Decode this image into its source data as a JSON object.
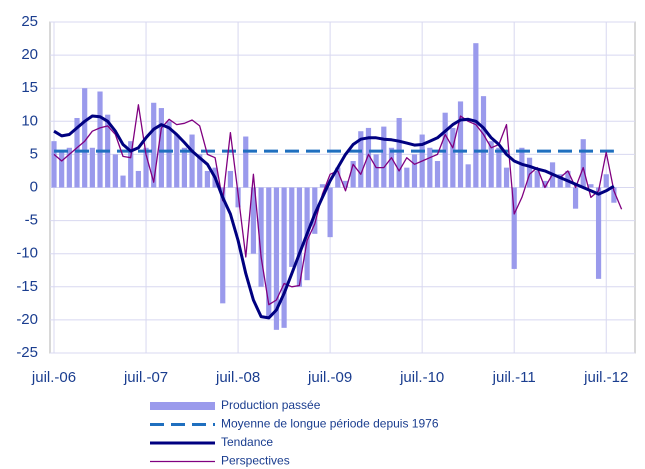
{
  "chart_data": {
    "type": "bar-line",
    "categories": [
      "juil.-06",
      null,
      null,
      null,
      null,
      null,
      null,
      null,
      null,
      null,
      null,
      null,
      "juil.-07",
      null,
      null,
      null,
      null,
      null,
      null,
      null,
      null,
      null,
      null,
      null,
      "juil.-08",
      null,
      null,
      null,
      null,
      null,
      null,
      null,
      null,
      null,
      null,
      null,
      "juil.-09",
      null,
      null,
      null,
      null,
      null,
      null,
      null,
      null,
      null,
      null,
      null,
      "juil.-10",
      null,
      null,
      null,
      null,
      null,
      null,
      null,
      null,
      null,
      null,
      null,
      "juil.-11",
      null,
      null,
      null,
      null,
      null,
      null,
      null,
      null,
      null,
      null,
      null,
      "juil.-12",
      null,
      null
    ],
    "series": [
      {
        "name": "Production passée",
        "kind": "bar",
        "color": "#9a9aec",
        "values": [
          7,
          5.5,
          6,
          10.5,
          15,
          6,
          14.5,
          11,
          5,
          1.8,
          7,
          2.5,
          6,
          12.8,
          12,
          10,
          8,
          6,
          8,
          5,
          2.5,
          3,
          -17.5,
          2.5,
          -3,
          7.7,
          -10,
          -15,
          -19.5,
          -21.5,
          -21.2,
          -12,
          -15,
          -14,
          -7,
          0.5,
          -7.5,
          3,
          1,
          4,
          8.5,
          9,
          5,
          9.2,
          6,
          10.5,
          3,
          5,
          8,
          6,
          4,
          11.3,
          9,
          13,
          3.5,
          21.8,
          13.8,
          7,
          6,
          3,
          -12.3,
          6,
          4.5,
          2.5,
          1,
          3.8,
          2,
          2.5,
          -3.2,
          7.3,
          0.5,
          -13.8,
          2,
          -2.3,
          null
        ]
      },
      {
        "name": "Moyenne de longue période depuis 1976",
        "kind": "dashed",
        "color": "#1f6fbf",
        "values": [
          5.5,
          5.5,
          5.5,
          5.5,
          5.5,
          5.5,
          5.5,
          5.5,
          5.5,
          5.5,
          5.5,
          5.5,
          5.5,
          5.5,
          5.5,
          5.5,
          5.5,
          5.5,
          5.5,
          5.5,
          5.5,
          5.5,
          5.5,
          5.5,
          5.5,
          5.5,
          5.5,
          5.5,
          5.5,
          5.5,
          5.5,
          5.5,
          5.5,
          5.5,
          5.5,
          5.5,
          5.5,
          5.5,
          5.5,
          5.5,
          5.5,
          5.5,
          5.5,
          5.5,
          5.5,
          5.5,
          5.5,
          5.5,
          5.5,
          5.5,
          5.5,
          5.5,
          5.5,
          5.5,
          5.5,
          5.5,
          5.5,
          5.5,
          5.5,
          5.5,
          5.5,
          5.5,
          5.5,
          5.5,
          5.5,
          5.5,
          5.5,
          5.5,
          5.5,
          5.5,
          5.5,
          5.5,
          5.5,
          5.5,
          null
        ]
      },
      {
        "name": "Tendance",
        "kind": "thick",
        "color": "#000080",
        "values": [
          8.5,
          7.8,
          8,
          9,
          10,
          10.8,
          10.7,
          10,
          8.5,
          6.5,
          5.5,
          6,
          7.5,
          8.8,
          9.5,
          9,
          8,
          6.8,
          5.5,
          4.5,
          3.5,
          1.5,
          -1.5,
          -4,
          -8,
          -13,
          -17,
          -19.5,
          -19.7,
          -18.5,
          -16,
          -13,
          -10,
          -7,
          -4,
          -1.5,
          1,
          3,
          5,
          6.5,
          7.3,
          7.5,
          7.5,
          7.3,
          7.2,
          7,
          6.7,
          6.4,
          6.5,
          7,
          7.5,
          8.5,
          9.5,
          10.2,
          10.3,
          10,
          9,
          7.5,
          6.5,
          5,
          4,
          3.5,
          3.2,
          2.8,
          2.5,
          2,
          1.5,
          1,
          0.5,
          0,
          -0.5,
          -1,
          -0.5,
          0.2,
          null
        ]
      },
      {
        "name": "Perspectives",
        "kind": "thin",
        "color": "#800080",
        "values": [
          5,
          4,
          5,
          6,
          7,
          8.5,
          9,
          9.3,
          8,
          4.7,
          4.5,
          12.5,
          5,
          0.8,
          9,
          10.3,
          9.5,
          9.7,
          10.2,
          9.3,
          5,
          4.5,
          -2,
          8.3,
          -1,
          -10.5,
          2,
          -10.5,
          -17.7,
          -17,
          -14.5,
          -15,
          -14.8,
          -8,
          -5.5,
          -1,
          2,
          2.5,
          -0.5,
          3.5,
          2,
          5,
          3,
          3,
          4.5,
          2.5,
          4.5,
          3.5,
          4,
          4.5,
          5,
          8,
          6,
          10.8,
          10,
          9.5,
          8,
          6,
          6.5,
          9.5,
          -4,
          -1.5,
          2,
          3,
          0,
          2,
          1.5,
          2.5,
          0,
          3,
          -1.5,
          -0.5,
          5.3,
          -0.5,
          -3.3
        ]
      }
    ],
    "ylim": [
      -25,
      25
    ],
    "yticks": [
      -25,
      -20,
      -15,
      -10,
      -5,
      0,
      5,
      10,
      15,
      20,
      25
    ],
    "grid": true
  }
}
